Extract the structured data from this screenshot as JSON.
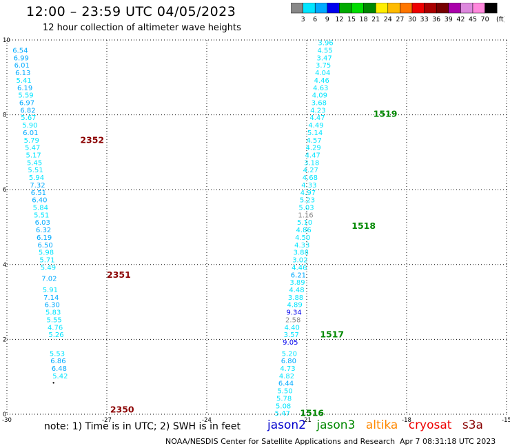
{
  "title": "12:00 – 23:59 UTC 04/05/2023",
  "subtitle": "12 hour collection of altimeter wave heights",
  "colorbar": {
    "unit": "(ft)",
    "labels": [
      "3",
      "6",
      "9",
      "12",
      "15",
      "18",
      "21",
      "24",
      "27",
      "30",
      "33",
      "36",
      "39",
      "42",
      "45",
      "70"
    ],
    "colors": [
      "#888888",
      "#00e5ff",
      "#00aaff",
      "#0000ee",
      "#00aa00",
      "#00dd00",
      "#008800",
      "#ffee00",
      "#ffbb00",
      "#ff7700",
      "#ee0000",
      "#aa0000",
      "#770000",
      "#aa00aa",
      "#dd88dd",
      "#ff88dd",
      "#000000"
    ]
  },
  "chart_data": {
    "type": "scatter",
    "xlim": [
      -30,
      -15
    ],
    "ylim": [
      0,
      10
    ],
    "x_ticks": [
      "-30",
      "-27",
      "-24",
      "-21",
      "-18",
      "-15"
    ],
    "y_ticks": [
      "0",
      "2",
      "4",
      "6",
      "8",
      "10"
    ],
    "grid": "dotted",
    "series": [
      {
        "name": "jason2",
        "color": "#0000cc",
        "points": []
      },
      {
        "name": "jason3",
        "color": "#008800",
        "points": [
          {
            "x": -20.43,
            "y": 9.86,
            "v": "3.96"
          },
          {
            "x": -20.45,
            "y": 9.66,
            "v": "4.55"
          },
          {
            "x": -20.47,
            "y": 9.46,
            "v": "3.47"
          },
          {
            "x": -20.5,
            "y": 9.26,
            "v": "3.75"
          },
          {
            "x": -20.52,
            "y": 9.06,
            "v": "4.04"
          },
          {
            "x": -20.55,
            "y": 8.86,
            "v": "4.46"
          },
          {
            "x": -20.58,
            "y": 8.66,
            "v": "4.63"
          },
          {
            "x": -20.61,
            "y": 8.46,
            "v": "4.09"
          },
          {
            "x": -20.63,
            "y": 8.26,
            "v": "3.68"
          },
          {
            "x": -20.66,
            "y": 8.06,
            "v": "4.23"
          },
          {
            "x": -20.68,
            "y": 7.86,
            "v": "4.47"
          },
          {
            "x": -20.72,
            "y": 7.66,
            "v": "4.49"
          },
          {
            "x": -20.75,
            "y": 7.46,
            "v": "5.14"
          },
          {
            "x": -20.78,
            "y": 7.26,
            "v": "4.57"
          },
          {
            "x": -20.8,
            "y": 7.06,
            "v": "4.29"
          },
          {
            "x": -20.82,
            "y": 6.86,
            "v": "4.47"
          },
          {
            "x": -20.85,
            "y": 6.66,
            "v": "3.18"
          },
          {
            "x": -20.88,
            "y": 6.46,
            "v": "4.27"
          },
          {
            "x": -20.9,
            "y": 6.26,
            "v": "4.68"
          },
          {
            "x": -20.93,
            "y": 6.06,
            "v": "4.33"
          },
          {
            "x": -20.96,
            "y": 5.86,
            "v": "4.97"
          },
          {
            "x": -20.98,
            "y": 5.66,
            "v": "5.23"
          },
          {
            "x": -21.01,
            "y": 5.46,
            "v": "5.03"
          },
          {
            "x": -21.03,
            "y": 5.26,
            "v": "1.16"
          },
          {
            "x": -21.06,
            "y": 5.06,
            "v": "5.10"
          },
          {
            "x": -21.09,
            "y": 4.86,
            "v": "4.86"
          },
          {
            "x": -21.12,
            "y": 4.66,
            "v": "4.50"
          },
          {
            "x": -21.14,
            "y": 4.46,
            "v": "4.33"
          },
          {
            "x": -21.17,
            "y": 4.26,
            "v": "3.88"
          },
          {
            "x": -21.2,
            "y": 4.06,
            "v": "3.02"
          },
          {
            "x": -21.22,
            "y": 3.86,
            "v": "4.46"
          },
          {
            "x": -21.25,
            "y": 3.66,
            "v": "6.21"
          },
          {
            "x": -21.28,
            "y": 3.46,
            "v": "3.89"
          },
          {
            "x": -21.3,
            "y": 3.26,
            "v": "4.48"
          },
          {
            "x": -21.33,
            "y": 3.06,
            "v": "3.88"
          },
          {
            "x": -21.36,
            "y": 2.86,
            "v": "4.89"
          },
          {
            "x": -21.38,
            "y": 2.66,
            "v": "9.34"
          },
          {
            "x": -21.41,
            "y": 2.46,
            "v": "2.58"
          },
          {
            "x": -21.44,
            "y": 2.26,
            "v": "4.40"
          },
          {
            "x": -21.46,
            "y": 2.06,
            "v": "3.57"
          },
          {
            "x": -21.49,
            "y": 1.86,
            "v": "9.05"
          },
          {
            "x": -21.52,
            "y": 1.56,
            "v": "5.20"
          },
          {
            "x": -21.54,
            "y": 1.36,
            "v": "6.80"
          },
          {
            "x": -21.57,
            "y": 1.16,
            "v": "4.73"
          },
          {
            "x": -21.6,
            "y": 0.96,
            "v": "4.82"
          },
          {
            "x": -21.62,
            "y": 0.76,
            "v": "6.44"
          },
          {
            "x": -21.65,
            "y": 0.56,
            "v": "5.50"
          },
          {
            "x": -21.68,
            "y": 0.36,
            "v": "5.78"
          },
          {
            "x": -21.7,
            "y": 0.16,
            "v": "5.08"
          },
          {
            "x": -21.73,
            "y": -0.04,
            "v": "5.47"
          }
        ]
      },
      {
        "name": "altika",
        "color": "#ff8800",
        "points": []
      },
      {
        "name": "cryosat",
        "color": "#ee0000",
        "points": [
          {
            "x": -29.6,
            "y": 9.66,
            "v": "6.54"
          },
          {
            "x": -29.57,
            "y": 9.46,
            "v": "6.99"
          },
          {
            "x": -29.55,
            "y": 9.26,
            "v": "6.01"
          },
          {
            "x": -29.52,
            "y": 9.06,
            "v": "6.13"
          },
          {
            "x": -29.49,
            "y": 8.86,
            "v": "5.41"
          },
          {
            "x": -29.46,
            "y": 8.66,
            "v": "6.19"
          },
          {
            "x": -29.43,
            "y": 8.46,
            "v": "5.59"
          },
          {
            "x": -29.4,
            "y": 8.26,
            "v": "6.97"
          },
          {
            "x": -29.37,
            "y": 8.06,
            "v": "6.82"
          },
          {
            "x": -29.35,
            "y": 7.86,
            "v": "5.67"
          },
          {
            "x": -29.31,
            "y": 7.66,
            "v": "5.90"
          },
          {
            "x": -29.29,
            "y": 7.46,
            "v": "6.01"
          },
          {
            "x": -29.26,
            "y": 7.26,
            "v": "5.79"
          },
          {
            "x": -29.23,
            "y": 7.06,
            "v": "5.47"
          },
          {
            "x": -29.2,
            "y": 6.86,
            "v": "5.17"
          },
          {
            "x": -29.17,
            "y": 6.66,
            "v": "5.45"
          },
          {
            "x": -29.14,
            "y": 6.46,
            "v": "5.51"
          },
          {
            "x": -29.11,
            "y": 6.26,
            "v": "5.94"
          },
          {
            "x": -29.08,
            "y": 6.06,
            "v": "7.32"
          },
          {
            "x": -29.05,
            "y": 5.86,
            "v": "6.51"
          },
          {
            "x": -29.02,
            "y": 5.66,
            "v": "6.40"
          },
          {
            "x": -28.99,
            "y": 5.46,
            "v": "5.84"
          },
          {
            "x": -28.96,
            "y": 5.26,
            "v": "5.51"
          },
          {
            "x": -28.93,
            "y": 5.06,
            "v": "6.03"
          },
          {
            "x": -28.9,
            "y": 4.86,
            "v": "6.32"
          },
          {
            "x": -28.88,
            "y": 4.66,
            "v": "6.19"
          },
          {
            "x": -28.85,
            "y": 4.46,
            "v": "6.50"
          },
          {
            "x": -28.82,
            "y": 4.26,
            "v": "5.98"
          },
          {
            "x": -28.79,
            "y": 4.06,
            "v": "5.71"
          },
          {
            "x": -28.76,
            "y": 3.86,
            "v": "5.49"
          },
          {
            "x": -28.73,
            "y": 3.56,
            "v": "7.02"
          },
          {
            "x": -28.7,
            "y": 3.26,
            "v": "5.91"
          },
          {
            "x": -28.67,
            "y": 3.06,
            "v": "7.14"
          },
          {
            "x": -28.64,
            "y": 2.86,
            "v": "6.30"
          },
          {
            "x": -28.61,
            "y": 2.66,
            "v": "5.83"
          },
          {
            "x": -28.58,
            "y": 2.46,
            "v": "5.55"
          },
          {
            "x": -28.55,
            "y": 2.26,
            "v": "4.76"
          },
          {
            "x": -28.52,
            "y": 2.06,
            "v": "5.26"
          },
          {
            "x": -28.49,
            "y": 1.56,
            "v": "5.53"
          },
          {
            "x": -28.46,
            "y": 1.36,
            "v": "6.86"
          },
          {
            "x": -28.43,
            "y": 1.16,
            "v": "6.48"
          },
          {
            "x": -28.4,
            "y": 0.96,
            "v": "5.42"
          }
        ]
      },
      {
        "name": "s3a",
        "color": "#880000",
        "points": []
      }
    ],
    "time_labels": [
      {
        "x": -27.8,
        "y": 7.25,
        "text": "2352",
        "color": "#8b0000"
      },
      {
        "x": -27.0,
        "y": 3.65,
        "text": "2351",
        "color": "#8b0000"
      },
      {
        "x": -26.9,
        "y": 0.05,
        "text": "2350",
        "color": "#8b0000"
      },
      {
        "x": -19.0,
        "y": 7.95,
        "text": "1519",
        "color": "#008800"
      },
      {
        "x": -19.65,
        "y": 4.95,
        "text": "1518",
        "color": "#008800"
      },
      {
        "x": -20.6,
        "y": 2.05,
        "text": "1517",
        "color": "#008800"
      },
      {
        "x": -21.2,
        "y": -0.05,
        "text": "1516",
        "color": "#008800"
      }
    ],
    "marker": {
      "x": -28.6,
      "y": 0.84
    }
  },
  "note": "note:  1) Time is in UTC; 2) SWH is in feet",
  "satellites": [
    {
      "label": "jason2",
      "color": "#0000cc"
    },
    {
      "label": "jason3",
      "color": "#008800"
    },
    {
      "label": "altika",
      "color": "#ff8800"
    },
    {
      "label": "cryosat",
      "color": "#ee0000"
    },
    {
      "label": "s3a",
      "color": "#880000"
    }
  ],
  "footer_credit": "NOAA/NESDIS Center for Satellite Applications and Research",
  "footer_time": "Apr  7 08:31:18 UTC 2023"
}
